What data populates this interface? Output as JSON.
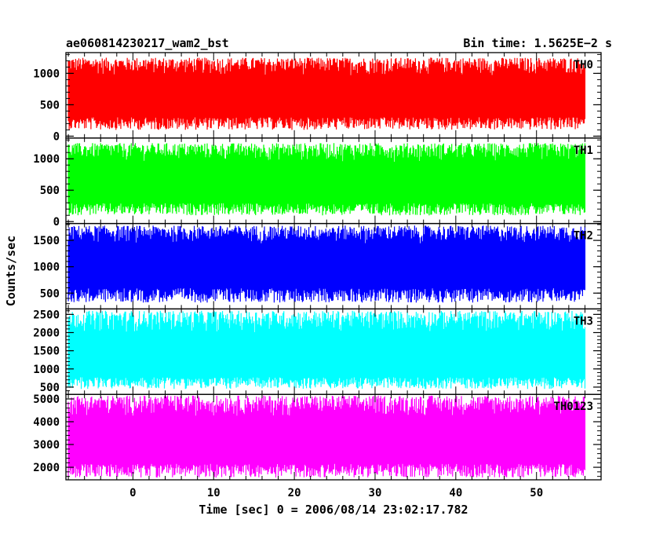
{
  "header": {
    "left_title": "ae060814230217_wam2_bst",
    "right_title": "Bin time: 1.5625E−2 s"
  },
  "chart_data": {
    "type": "line",
    "style": "dense stacked light curves, 5 vertically stacked panels sharing the time axis",
    "xlabel": "Time [sec] 0 = 2006/08/14 23:02:17.782",
    "ylabel": "Counts/sec",
    "xlim": [
      -8.3,
      58
    ],
    "x_ticks": [
      0,
      10,
      20,
      30,
      40,
      50
    ],
    "x_data_range": [
      -8,
      56
    ],
    "bin_time_s": 0.015625,
    "grid": false,
    "panels": [
      {
        "name": "TH0",
        "color": "#ff0000",
        "ylim": [
          -30,
          1330
        ],
        "y_ticks": [
          0,
          500,
          1000
        ],
        "typical_range": [
          100,
          1250
        ],
        "mean": 600
      },
      {
        "name": "TH1",
        "color": "#00ff00",
        "ylim": [
          -30,
          1330
        ],
        "y_ticks": [
          0,
          500,
          1000
        ],
        "typical_range": [
          100,
          1250
        ],
        "mean": 580
      },
      {
        "name": "TH2",
        "color": "#0000ff",
        "ylim": [
          200,
          1820
        ],
        "y_ticks": [
          500,
          1000,
          1500
        ],
        "typical_range": [
          320,
          1780
        ],
        "mean": 1000
      },
      {
        "name": "TH3",
        "color": "#00ffff",
        "ylim": [
          300,
          2650
        ],
        "y_ticks": [
          500,
          1000,
          1500,
          2000,
          2500
        ],
        "typical_range": [
          450,
          2600
        ],
        "mean": 1250
      },
      {
        "name": "TH0123",
        "color": "#ff00ff",
        "ylim": [
          1450,
          5200
        ],
        "y_ticks": [
          2000,
          3000,
          4000,
          5000
        ],
        "typical_range": [
          1550,
          5150
        ],
        "mean": 3050
      }
    ]
  }
}
